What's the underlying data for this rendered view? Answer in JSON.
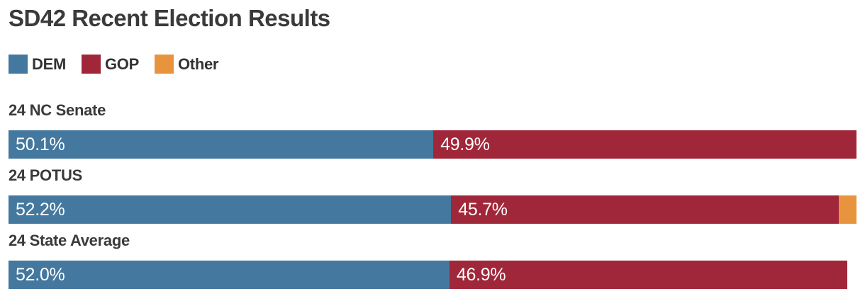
{
  "title": "SD42 Recent Election Results",
  "colors": {
    "dem": "#44789E",
    "gop": "#A02639",
    "other": "#E8943E",
    "heading_text": "#3A3A3A",
    "bar_label_text": "#FFFFFF",
    "background": "#FFFFFF"
  },
  "legend": {
    "items": [
      {
        "key": "dem",
        "label": "DEM"
      },
      {
        "key": "gop",
        "label": "GOP"
      },
      {
        "key": "other",
        "label": "Other"
      }
    ]
  },
  "chart_data": {
    "type": "bar",
    "orientation": "horizontal-stacked",
    "title": "SD42 Recent Election Results",
    "categories": [
      "24 NC Senate",
      "24 POTUS",
      "24 State Average"
    ],
    "series": [
      {
        "name": "DEM",
        "values": [
          50.1,
          52.2,
          52.0
        ]
      },
      {
        "name": "GOP",
        "values": [
          49.9,
          45.7,
          46.9
        ]
      },
      {
        "name": "Other",
        "values": [
          0,
          2.1,
          0
        ]
      }
    ],
    "xlim": [
      0,
      100
    ],
    "grid": false,
    "legend_position": "top-left",
    "value_label_format": "percent-inside-left"
  },
  "rows": [
    {
      "label": "24 NC Senate",
      "segments": [
        {
          "key": "dem",
          "pct": 50.1,
          "text": "50.1%"
        },
        {
          "key": "gop",
          "pct": 49.9,
          "text": "49.9%"
        }
      ]
    },
    {
      "label": "24 POTUS",
      "segments": [
        {
          "key": "dem",
          "pct": 52.2,
          "text": "52.2%"
        },
        {
          "key": "gop",
          "pct": 45.7,
          "text": "45.7%"
        },
        {
          "key": "other",
          "pct": 2.1,
          "text": ""
        }
      ]
    },
    {
      "label": "24 State Average",
      "segments": [
        {
          "key": "dem",
          "pct": 52.0,
          "text": "52.0%"
        },
        {
          "key": "gop",
          "pct": 46.9,
          "text": "46.9%"
        }
      ]
    }
  ]
}
